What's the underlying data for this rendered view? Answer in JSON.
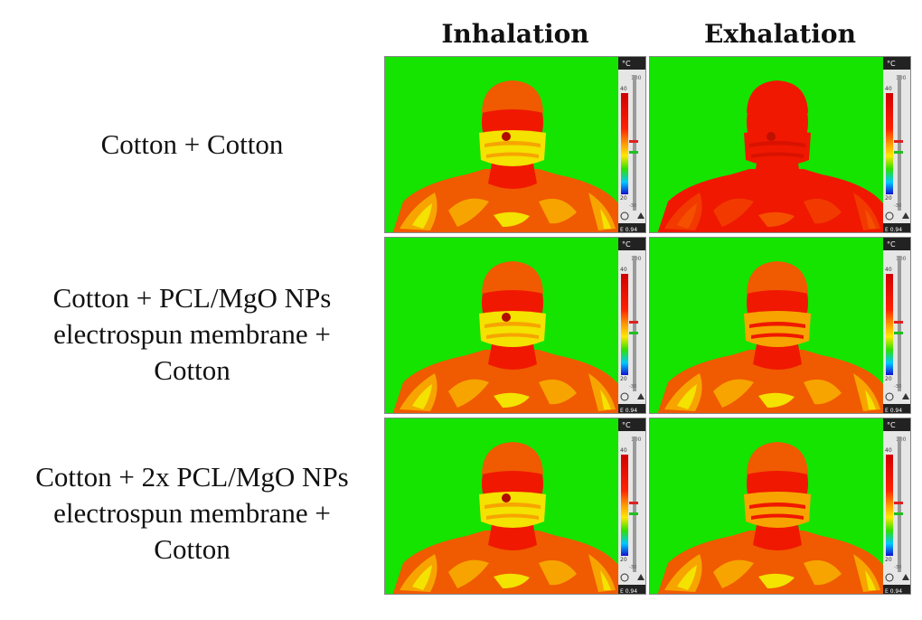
{
  "columns": [
    "Inhalation",
    "Exhalation"
  ],
  "rows": [
    {
      "label_lines": [
        "Cotton + Cotton"
      ]
    },
    {
      "label_lines": [
        "Cotton + PCL/MgO NPs",
        "electrospun membrane +",
        "Cotton"
      ]
    },
    {
      "label_lines": [
        "Cotton + 2x PCL/MgO NPs",
        "electrospun membrane +",
        "Cotton"
      ]
    }
  ],
  "scale": {
    "unit": "°C",
    "max": "100",
    "upper": "40",
    "lower": "20",
    "min": "-30",
    "emissivity": "E 0.94"
  },
  "colors": {
    "background": "#14e400",
    "body_hot": "#f01800",
    "body_warm": "#f05a00",
    "orange": "#f7a400",
    "yellow": "#f4e200"
  },
  "icons": [
    "thermal-scale-icon"
  ]
}
